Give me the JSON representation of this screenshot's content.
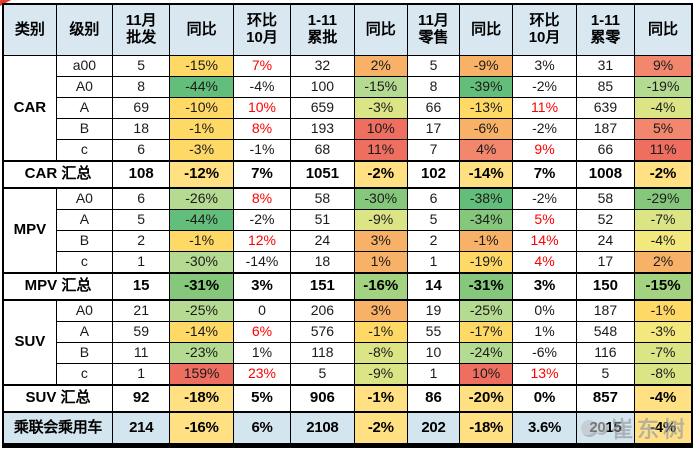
{
  "palette": {
    "header_bg": "#d9e7f0",
    "grand_row_bg": "#d3e5ee",
    "border": "#000000",
    "mom_up_text": "#fe0000",
    "bg": {
      "g": "#63be7b",
      "g2": "#85c87c",
      "lg": "#b5da92",
      "lg2": "#a3d380",
      "yg": "#dce586",
      "ly": "#f2e87d",
      "y": "#ffd966",
      "yt": "#ffe183",
      "o": "#f8b267",
      "s": "#f2876e",
      "r": "#ee6f60"
    }
  },
  "header": {
    "labels": [
      "类别",
      "级别",
      "11月\n批发",
      "同比",
      "环比\n10月",
      "1-11\n累批",
      "同比",
      "11月\n零售",
      "同比",
      "环比\n10月",
      "1-11\n累零",
      "同比"
    ]
  },
  "watermark": {
    "text": "崔东树"
  },
  "chart_data": {
    "type": "table",
    "columns": [
      "类别",
      "级别",
      "11月批发",
      "同比",
      "环比10月",
      "1-11累批",
      "同比",
      "11月零售",
      "同比",
      "环比10月",
      "1-11累零",
      "同比"
    ],
    "rows": [
      {
        "kind": "data",
        "cells": [
          {
            "v": "CAR",
            "rs": 5,
            "cat": true
          },
          {
            "v": "a00"
          },
          {
            "v": "5"
          },
          {
            "v": "-15%",
            "bg": "y"
          },
          {
            "v": "7%",
            "fg": "red"
          },
          {
            "v": "32"
          },
          {
            "v": "2%",
            "bg": "o"
          },
          {
            "v": "5"
          },
          {
            "v": "-9%",
            "bg": "o"
          },
          {
            "v": "3%"
          },
          {
            "v": "31"
          },
          {
            "v": "9%",
            "bg": "s"
          }
        ]
      },
      {
        "kind": "data",
        "cells": [
          {
            "v": "A0"
          },
          {
            "v": "8"
          },
          {
            "v": "-44%",
            "bg": "g"
          },
          {
            "v": "-4%"
          },
          {
            "v": "100"
          },
          {
            "v": "-15%",
            "bg": "lg"
          },
          {
            "v": "8"
          },
          {
            "v": "-39%",
            "bg": "g"
          },
          {
            "v": "-2%"
          },
          {
            "v": "85"
          },
          {
            "v": "-19%",
            "bg": "lg"
          }
        ]
      },
      {
        "kind": "data",
        "cells": [
          {
            "v": "A"
          },
          {
            "v": "69"
          },
          {
            "v": "-10%",
            "bg": "y"
          },
          {
            "v": "10%",
            "fg": "red"
          },
          {
            "v": "659"
          },
          {
            "v": "-3%",
            "bg": "yg"
          },
          {
            "v": "66"
          },
          {
            "v": "-13%",
            "bg": "y"
          },
          {
            "v": "11%",
            "fg": "red"
          },
          {
            "v": "639"
          },
          {
            "v": "-4%",
            "bg": "yg"
          }
        ]
      },
      {
        "kind": "data",
        "cells": [
          {
            "v": "B"
          },
          {
            "v": "18"
          },
          {
            "v": "-1%",
            "bg": "y"
          },
          {
            "v": "8%",
            "fg": "red"
          },
          {
            "v": "193"
          },
          {
            "v": "10%",
            "bg": "r"
          },
          {
            "v": "17"
          },
          {
            "v": "-6%",
            "bg": "o"
          },
          {
            "v": "-2%"
          },
          {
            "v": "187"
          },
          {
            "v": "5%",
            "bg": "s"
          }
        ]
      },
      {
        "kind": "data",
        "cells": [
          {
            "v": "c"
          },
          {
            "v": "6"
          },
          {
            "v": "-3%",
            "bg": "y"
          },
          {
            "v": "-1%"
          },
          {
            "v": "68"
          },
          {
            "v": "11%",
            "bg": "r"
          },
          {
            "v": "7"
          },
          {
            "v": "4%",
            "bg": "s"
          },
          {
            "v": "9%",
            "fg": "red"
          },
          {
            "v": "66"
          },
          {
            "v": "11%",
            "bg": "r"
          }
        ]
      },
      {
        "kind": "total",
        "cells": [
          {
            "v": "CAR 汇总",
            "cs": 2
          },
          {
            "v": "108"
          },
          {
            "v": "-12%",
            "bg": "yt"
          },
          {
            "v": "7%",
            "fg": "red"
          },
          {
            "v": "1051"
          },
          {
            "v": "-2%",
            "bg": "yt"
          },
          {
            "v": "102"
          },
          {
            "v": "-14%",
            "bg": "yt"
          },
          {
            "v": "7%",
            "fg": "red"
          },
          {
            "v": "1008"
          },
          {
            "v": "-2%",
            "bg": "yt"
          }
        ]
      },
      {
        "kind": "data",
        "cells": [
          {
            "v": "MPV",
            "rs": 4,
            "cat": true
          },
          {
            "v": "A0"
          },
          {
            "v": "6"
          },
          {
            "v": "-26%",
            "bg": "lg"
          },
          {
            "v": "8%",
            "fg": "red"
          },
          {
            "v": "58"
          },
          {
            "v": "-30%",
            "bg": "g2"
          },
          {
            "v": "6"
          },
          {
            "v": "-38%",
            "bg": "g"
          },
          {
            "v": "-2%"
          },
          {
            "v": "58"
          },
          {
            "v": "-29%",
            "bg": "g2"
          }
        ]
      },
      {
        "kind": "data",
        "cells": [
          {
            "v": "A"
          },
          {
            "v": "5"
          },
          {
            "v": "-44%",
            "bg": "g"
          },
          {
            "v": "-2%"
          },
          {
            "v": "51"
          },
          {
            "v": "-9%",
            "bg": "yg"
          },
          {
            "v": "5"
          },
          {
            "v": "-34%",
            "bg": "g2"
          },
          {
            "v": "5%",
            "fg": "red"
          },
          {
            "v": "52"
          },
          {
            "v": "-7%",
            "bg": "yg"
          }
        ]
      },
      {
        "kind": "data",
        "cells": [
          {
            "v": "B"
          },
          {
            "v": "2"
          },
          {
            "v": "-1%",
            "bg": "y"
          },
          {
            "v": "12%",
            "fg": "red"
          },
          {
            "v": "24"
          },
          {
            "v": "3%",
            "bg": "o"
          },
          {
            "v": "2"
          },
          {
            "v": "-1%",
            "bg": "o"
          },
          {
            "v": "14%",
            "fg": "red"
          },
          {
            "v": "24"
          },
          {
            "v": "-4%",
            "bg": "ly"
          }
        ]
      },
      {
        "kind": "data",
        "cells": [
          {
            "v": "c"
          },
          {
            "v": "1"
          },
          {
            "v": "-30%",
            "bg": "lg"
          },
          {
            "v": "-14%"
          },
          {
            "v": "18"
          },
          {
            "v": "1%",
            "bg": "o"
          },
          {
            "v": "1"
          },
          {
            "v": "-19%",
            "bg": "y"
          },
          {
            "v": "4%",
            "fg": "red"
          },
          {
            "v": "17"
          },
          {
            "v": "2%",
            "bg": "o"
          }
        ]
      },
      {
        "kind": "total",
        "cells": [
          {
            "v": "MPV 汇总",
            "cs": 2
          },
          {
            "v": "15"
          },
          {
            "v": "-31%",
            "bg": "g2"
          },
          {
            "v": "3%"
          },
          {
            "v": "151"
          },
          {
            "v": "-16%",
            "bg": "lg2"
          },
          {
            "v": "14"
          },
          {
            "v": "-31%",
            "bg": "g2"
          },
          {
            "v": "3%"
          },
          {
            "v": "150"
          },
          {
            "v": "-15%",
            "bg": "lg2"
          }
        ]
      },
      {
        "kind": "data",
        "cells": [
          {
            "v": "SUV",
            "rs": 4,
            "cat": true
          },
          {
            "v": "A0"
          },
          {
            "v": "21"
          },
          {
            "v": "-25%",
            "bg": "lg"
          },
          {
            "v": "0"
          },
          {
            "v": "206"
          },
          {
            "v": "3%",
            "bg": "o"
          },
          {
            "v": "19"
          },
          {
            "v": "-25%",
            "bg": "lg"
          },
          {
            "v": "0%"
          },
          {
            "v": "187"
          },
          {
            "v": "-1%",
            "bg": "y"
          }
        ]
      },
      {
        "kind": "data",
        "cells": [
          {
            "v": "A"
          },
          {
            "v": "59"
          },
          {
            "v": "-14%",
            "bg": "y"
          },
          {
            "v": "6%",
            "fg": "red"
          },
          {
            "v": "576"
          },
          {
            "v": "-1%",
            "bg": "y"
          },
          {
            "v": "55"
          },
          {
            "v": "-17%",
            "bg": "y"
          },
          {
            "v": "1%"
          },
          {
            "v": "548"
          },
          {
            "v": "-3%",
            "bg": "ly"
          }
        ]
      },
      {
        "kind": "data",
        "cells": [
          {
            "v": "B"
          },
          {
            "v": "11"
          },
          {
            "v": "-23%",
            "bg": "lg"
          },
          {
            "v": "1%"
          },
          {
            "v": "118"
          },
          {
            "v": "-8%",
            "bg": "yg"
          },
          {
            "v": "10"
          },
          {
            "v": "-24%",
            "bg": "lg"
          },
          {
            "v": "-6%"
          },
          {
            "v": "116"
          },
          {
            "v": "-7%",
            "bg": "yg"
          }
        ]
      },
      {
        "kind": "data",
        "cells": [
          {
            "v": "c"
          },
          {
            "v": "1"
          },
          {
            "v": "159%",
            "bg": "r"
          },
          {
            "v": "23%",
            "fg": "red"
          },
          {
            "v": "5"
          },
          {
            "v": "-9%",
            "bg": "yg"
          },
          {
            "v": "1"
          },
          {
            "v": "10%",
            "bg": "r"
          },
          {
            "v": "13%",
            "fg": "red"
          },
          {
            "v": "5"
          },
          {
            "v": "-8%",
            "bg": "yg"
          }
        ]
      },
      {
        "kind": "total",
        "cells": [
          {
            "v": "SUV 汇总",
            "cs": 2
          },
          {
            "v": "92"
          },
          {
            "v": "-18%",
            "bg": "yt"
          },
          {
            "v": "5%"
          },
          {
            "v": "906"
          },
          {
            "v": "-1%",
            "bg": "yt"
          },
          {
            "v": "86"
          },
          {
            "v": "-20%",
            "bg": "yt"
          },
          {
            "v": "0%"
          },
          {
            "v": "857"
          },
          {
            "v": "-4%",
            "bg": "yt"
          }
        ]
      },
      {
        "kind": "grand",
        "cells": [
          {
            "v": "乘联会乘用车",
            "cs": 2
          },
          {
            "v": "214"
          },
          {
            "v": "-16%",
            "bg": "yt"
          },
          {
            "v": "6%"
          },
          {
            "v": "2108"
          },
          {
            "v": "-2%",
            "bg": "yt"
          },
          {
            "v": "202"
          },
          {
            "v": "-18%",
            "bg": "yt"
          },
          {
            "v": "3.6%"
          },
          {
            "v": "2015"
          },
          {
            "v": "-4%",
            "bg": "yt"
          }
        ]
      }
    ]
  }
}
